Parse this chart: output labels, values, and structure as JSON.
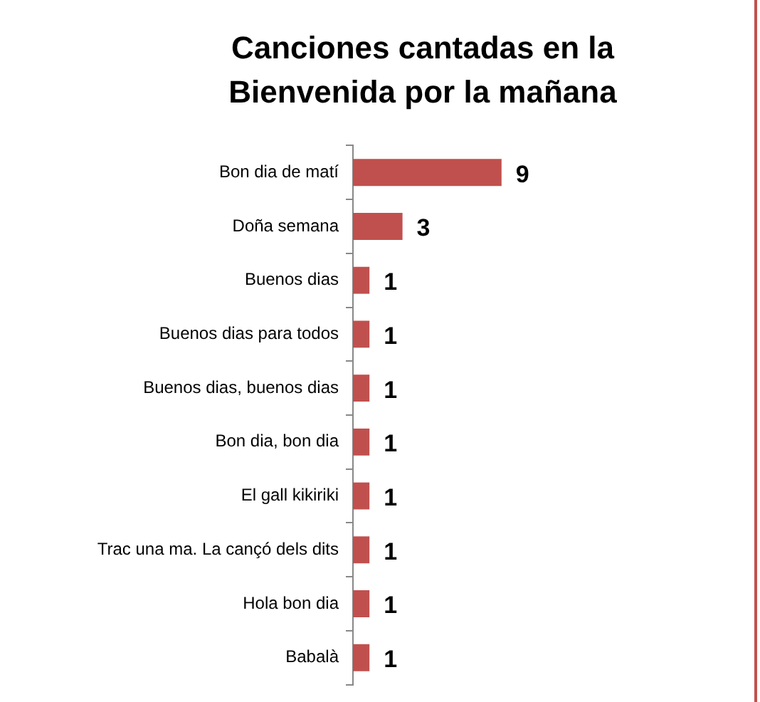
{
  "chart_data": {
    "type": "bar",
    "orientation": "horizontal",
    "title": "Canciones cantadas en la Bienvenida por la mañana",
    "categories": [
      "Bon dia de matí",
      "Doña semana",
      "Buenos dias",
      "Buenos dias para todos",
      "Buenos dias, buenos dias",
      "Bon dia, bon dia",
      "El gall kikiriki",
      "Trac una ma. La cançó dels dits",
      "Hola bon dia",
      "Babalà"
    ],
    "values": [
      9,
      3,
      1,
      1,
      1,
      1,
      1,
      1,
      1,
      1
    ],
    "color": "#c0504d",
    "data_labels": true,
    "legend": false
  }
}
